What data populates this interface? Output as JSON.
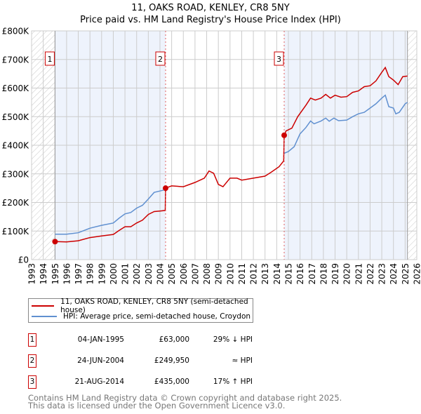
{
  "title": "11, OAKS ROAD, KENLEY, CR8 5NY",
  "subtitle": "Price paid vs. HM Land Registry's House Price Index (HPI)",
  "colors": {
    "property": "#cc0000",
    "hpi": "#6090d0",
    "shade": "#eef3fc",
    "grid": "#cccccc"
  },
  "chart_data": {
    "type": "line",
    "title": "11, OAKS ROAD, KENLEY, CR8 5NY",
    "xlabel": "",
    "ylabel": "",
    "xlim": [
      1993,
      2026
    ],
    "ylim": [
      0,
      800000
    ],
    "grid": true,
    "legend_position": "below",
    "y_ticks": [
      {
        "v": 0,
        "label": "£0"
      },
      {
        "v": 100000,
        "label": "£100K"
      },
      {
        "v": 200000,
        "label": "£200K"
      },
      {
        "v": 300000,
        "label": "£300K"
      },
      {
        "v": 400000,
        "label": "£400K"
      },
      {
        "v": 500000,
        "label": "£500K"
      },
      {
        "v": 600000,
        "label": "£600K"
      },
      {
        "v": 700000,
        "label": "£700K"
      },
      {
        "v": 800000,
        "label": "£800K"
      }
    ],
    "x_ticks": [
      "1993",
      "1994",
      "1995",
      "1996",
      "1997",
      "1998",
      "1999",
      "2000",
      "2001",
      "2002",
      "2003",
      "2004",
      "2005",
      "2006",
      "2007",
      "2008",
      "2009",
      "2010",
      "2011",
      "2012",
      "2013",
      "2014",
      "2015",
      "2016",
      "2017",
      "2018",
      "2019",
      "2020",
      "2021",
      "2022",
      "2023",
      "2024",
      "2025",
      "2026"
    ],
    "series": [
      {
        "name": "11, OAKS ROAD, KENLEY, CR8 5NY (semi-detached house)",
        "color": "#cc0000",
        "x": [
          1995.01,
          1996,
          1997,
          1998,
          1999,
          2000,
          2000.5,
          2001,
          2001.5,
          2002,
          2002.5,
          2003,
          2003.5,
          2004,
          2004.45,
          2004.48,
          2005,
          2006,
          2007,
          2007.8,
          2008.2,
          2008.6,
          2009,
          2009.4,
          2010,
          2010.6,
          2011,
          2012,
          2013,
          2013.5,
          2014.2,
          2014.6,
          2014.64,
          2014.8,
          2015.3,
          2015.8,
          2016.5,
          2016.9,
          2017.3,
          2017.8,
          2018.2,
          2018.6,
          2019,
          2019.5,
          2020,
          2020.5,
          2021,
          2021.5,
          2022,
          2022.5,
          2023,
          2023.3,
          2023.6,
          2024,
          2024.4,
          2024.8,
          2025.2
        ],
        "y": [
          63000,
          62000,
          66000,
          77000,
          83000,
          88000,
          102000,
          115000,
          115000,
          128000,
          138000,
          158000,
          168000,
          170000,
          172000,
          249950,
          258000,
          255000,
          270000,
          285000,
          310000,
          302000,
          263000,
          255000,
          285000,
          285000,
          278000,
          285000,
          292000,
          305000,
          325000,
          345000,
          435000,
          450000,
          460000,
          500000,
          540000,
          565000,
          558000,
          565000,
          578000,
          565000,
          575000,
          568000,
          570000,
          585000,
          590000,
          605000,
          608000,
          625000,
          655000,
          672000,
          640000,
          628000,
          612000,
          640000,
          642000
        ]
      },
      {
        "name": "HPI: Average price, semi-detached house, Croydon",
        "color": "#6090d0",
        "x": [
          1995.01,
          1996,
          1997,
          1998,
          1999,
          2000,
          2000.5,
          2001,
          2001.5,
          2002,
          2002.5,
          2003,
          2003.5,
          2004,
          2004.48,
          null,
          2014.64,
          2015,
          2015.5,
          2016,
          2016.5,
          2016.9,
          2017.2,
          2017.8,
          2018.2,
          2018.5,
          2018.9,
          2019.3,
          2020,
          2020.5,
          2021,
          2021.5,
          2022,
          2022.5,
          2023,
          2023.3,
          2023.6,
          2024,
          2024.2,
          2024.5,
          2025,
          2025.2
        ],
        "y": [
          89000,
          89000,
          94000,
          110000,
          120000,
          128000,
          145000,
          160000,
          165000,
          180000,
          190000,
          212000,
          235000,
          240000,
          245000,
          null,
          372000,
          378000,
          395000,
          440000,
          462000,
          485000,
          475000,
          485000,
          495000,
          484000,
          495000,
          486000,
          488000,
          500000,
          510000,
          515000,
          530000,
          545000,
          565000,
          575000,
          535000,
          530000,
          510000,
          515000,
          545000,
          550000
        ]
      }
    ],
    "annotations": [
      {
        "label": "1",
        "x": 1995.01,
        "y": 63000
      },
      {
        "label": "2",
        "x": 2004.48,
        "y": 249950
      },
      {
        "label": "3",
        "x": 2014.64,
        "y": 435000
      }
    ],
    "shaded_ranges": [
      [
        1995.01,
        2004.48
      ],
      [
        2014.64,
        2025.2
      ]
    ],
    "hatched_ranges": [
      [
        1993,
        1995.01
      ],
      [
        2025.2,
        2026
      ]
    ]
  },
  "legend": [
    {
      "label": "11, OAKS ROAD, KENLEY, CR8 5NY (semi-detached house)",
      "color": "#cc0000"
    },
    {
      "label": "HPI: Average price, semi-detached house, Croydon",
      "color": "#6090d0"
    }
  ],
  "sales": [
    {
      "num": "1",
      "date": "04-JAN-1995",
      "price": "£63,000",
      "hpi": "29% ↓ HPI"
    },
    {
      "num": "2",
      "date": "24-JUN-2004",
      "price": "£249,950",
      "hpi": "≈ HPI"
    },
    {
      "num": "3",
      "date": "21-AUG-2014",
      "price": "£435,000",
      "hpi": "17% ↑ HPI"
    }
  ],
  "footer": {
    "line1": "Contains HM Land Registry data © Crown copyright and database right 2025.",
    "line2": "This data is licensed under the Open Government Licence v3.0."
  }
}
